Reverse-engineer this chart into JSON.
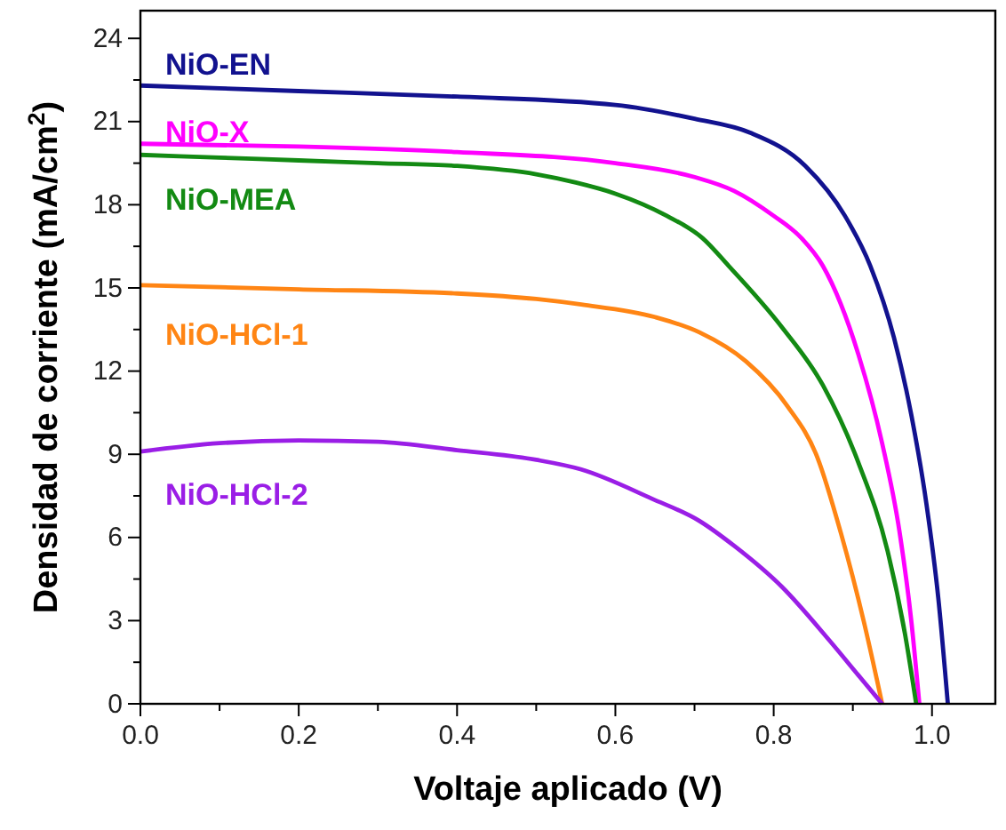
{
  "chart_data": {
    "type": "line",
    "xlabel": "Voltaje aplicado (V)",
    "ylabel": "Densidad de corriente (mA/cm$^{2}$)",
    "xlim": [
      0,
      1.08
    ],
    "ylim": [
      0,
      25
    ],
    "xticks": [
      {
        "value": 0,
        "label": "0.0"
      },
      {
        "value": 0.1,
        "label": null
      },
      {
        "value": 0.2,
        "label": "0.2"
      },
      {
        "value": 0.3,
        "label": null
      },
      {
        "value": 0.4,
        "label": "0.4"
      },
      {
        "value": 0.5,
        "label": null
      },
      {
        "value": 0.6,
        "label": "0.6"
      },
      {
        "value": 0.7,
        "label": null
      },
      {
        "value": 0.8,
        "label": "0.8"
      },
      {
        "value": 0.9,
        "label": null
      },
      {
        "value": 1,
        "label": "1.0"
      }
    ],
    "yticks": [
      0,
      {
        "value": 1.5,
        "label": null
      },
      3,
      {
        "value": 4.5,
        "label": null
      },
      6,
      {
        "value": 7.5,
        "label": null
      },
      9,
      {
        "value": 10.5,
        "label": null
      },
      12,
      {
        "value": 13.5,
        "label": null
      },
      15,
      {
        "value": 16.5,
        "label": null
      },
      18,
      {
        "value": 19.5,
        "label": null
      },
      21,
      {
        "value": 22.5,
        "label": null
      },
      24
    ],
    "grid": false,
    "legend": false,
    "marker": "none",
    "line_style": "solid",
    "series": [
      {
        "name": "NiO-EN",
        "color": "#12128f",
        "x": [
          0,
          0.2,
          0.4,
          0.6,
          0.7,
          0.77,
          0.84,
          0.89,
          0.922,
          0.952,
          0.974,
          0.993,
          1.008,
          1.02
        ],
        "values": [
          22.3,
          22.1,
          21.9,
          21.6,
          21.1,
          20.6,
          19.4,
          17.6,
          15.8,
          13.2,
          10.4,
          7.2,
          3.8,
          0
        ]
      },
      {
        "name": "NiO-X",
        "color": "#ff00ff",
        "x": [
          0,
          0.2,
          0.4,
          0.6,
          0.7,
          0.75,
          0.8,
          0.835,
          0.862,
          0.907,
          0.937,
          0.959,
          0.974,
          0.984
        ],
        "values": [
          20.2,
          20.1,
          19.9,
          19.5,
          19,
          18.5,
          17.6,
          16.8,
          15.8,
          12.6,
          9.4,
          6.2,
          2.95,
          0
        ]
      },
      {
        "name": "NiO-MEA",
        "color": "#138a13",
        "x": [
          0,
          0.1,
          0.2,
          0.3,
          0.4,
          0.5,
          0.55,
          0.6,
          0.665,
          0.71,
          0.743,
          0.81,
          0.862,
          0.907,
          0.944,
          0.966,
          0.98
        ],
        "values": [
          19.8,
          19.7,
          19.6,
          19.5,
          19.4,
          19.1,
          18.8,
          18.4,
          17.6,
          16.8,
          15.8,
          13.6,
          11.5,
          8.7,
          5.5,
          2.5,
          0
        ]
      },
      {
        "name": "NiO-HCl-1",
        "color": "#ff8514",
        "x": [
          0,
          0.2,
          0.4,
          0.5,
          0.557,
          0.65,
          0.706,
          0.765,
          0.817,
          0.855,
          0.885,
          0.914,
          0.937
        ],
        "values": [
          15.1,
          14.95,
          14.8,
          14.6,
          14.4,
          13.95,
          13.4,
          12.35,
          10.75,
          8.9,
          6.15,
          2.95,
          0
        ]
      },
      {
        "name": "NiO-HCl-2",
        "color": "#9a1ee6",
        "x": [
          0,
          0.1,
          0.2,
          0.3,
          0.4,
          0.5,
          0.556,
          0.646,
          0.706,
          0.75,
          0.81,
          0.87,
          0.907,
          0.937
        ],
        "values": [
          9.1,
          9.4,
          9.5,
          9.45,
          9.15,
          8.8,
          8.46,
          7.4,
          6.6,
          5.7,
          4.23,
          2.3,
          1.03,
          0
        ]
      }
    ]
  }
}
